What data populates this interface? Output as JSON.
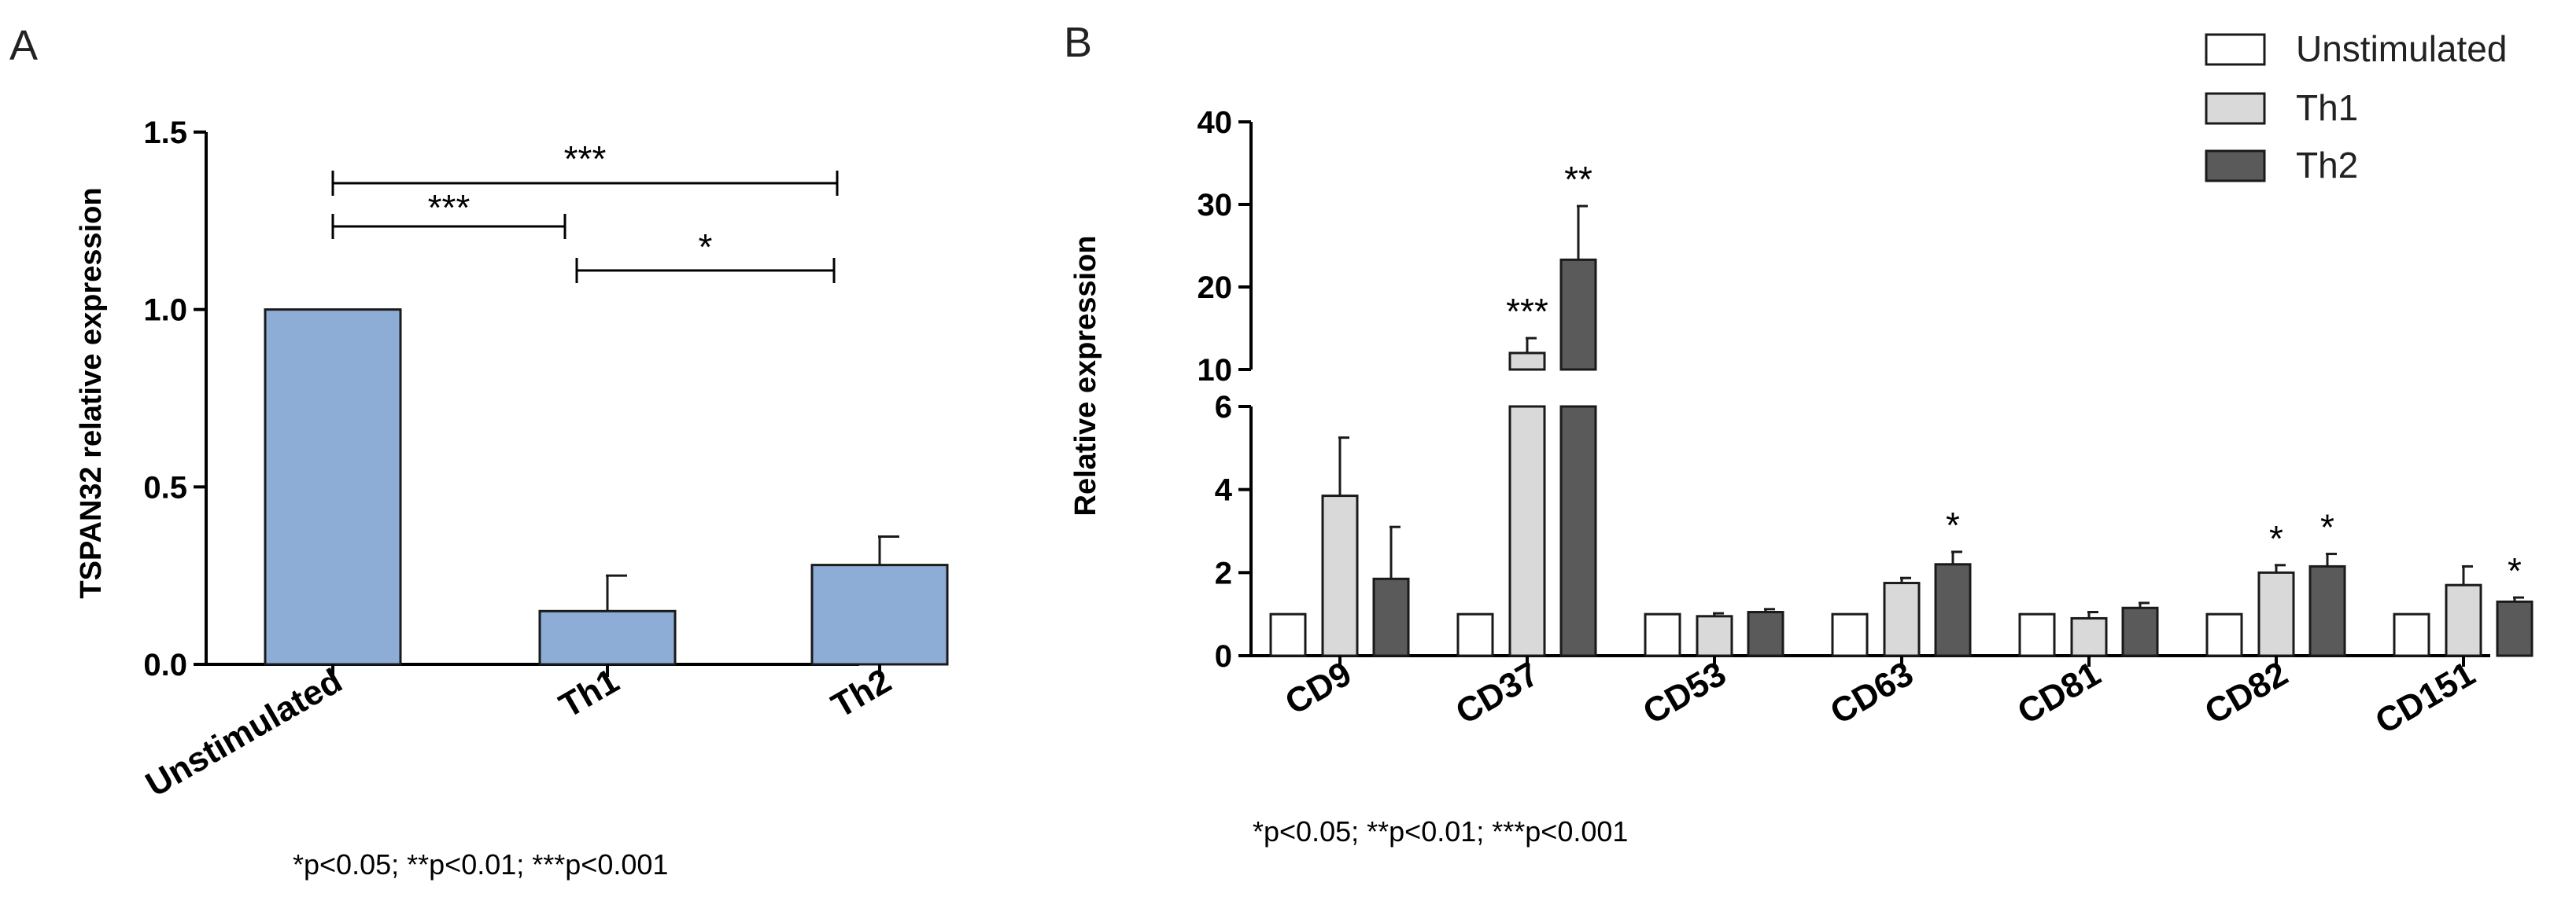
{
  "chart_data": [
    {
      "panel": "A",
      "type": "bar",
      "ylabel": "TSPAN32 relative expression",
      "categories": [
        "Unstimulated",
        "Th1",
        "Th2"
      ],
      "values": [
        1.0,
        0.15,
        0.28
      ],
      "errors": [
        0,
        0.1,
        0.08
      ],
      "ylim": [
        0,
        1.5
      ],
      "yticks": [
        "0.0",
        "0.5",
        "1.0",
        "1.5"
      ],
      "bar_color": "#8eadd6",
      "comparisons": [
        {
          "from": 0,
          "to": 2,
          "label": "***"
        },
        {
          "from": 0,
          "to": 1,
          "label": "***"
        },
        {
          "from": 1,
          "to": 2,
          "label": "*"
        }
      ],
      "footnote": "*p<0.05; **p<0.01; ***p<0.001"
    },
    {
      "panel": "B",
      "type": "bar",
      "ylabel": "Relative expression",
      "categories": [
        "CD9",
        "CD37",
        "CD53",
        "CD63",
        "CD81",
        "CD82",
        "CD151"
      ],
      "series": [
        {
          "name": "Unstimulated",
          "color": "#ffffff",
          "values": [
            1,
            1,
            1,
            1,
            1,
            1,
            1
          ],
          "errors": [
            0,
            0,
            0,
            0,
            0,
            0,
            0
          ],
          "sig": [
            "",
            "",
            "",
            "",
            "",
            "",
            ""
          ]
        },
        {
          "name": "Th1",
          "color": "#d9d9d9",
          "values": [
            3.85,
            12,
            0.95,
            1.75,
            0.9,
            2.0,
            1.7
          ],
          "errors": [
            1.4,
            1.8,
            0.07,
            0.12,
            0.15,
            0.18,
            0.45
          ],
          "sig": [
            "",
            "***",
            "",
            "",
            "",
            "*",
            ""
          ]
        },
        {
          "name": "Th2",
          "color": "#5a5a5a",
          "values": [
            1.85,
            23.3,
            1.05,
            2.2,
            1.15,
            2.15,
            1.3
          ],
          "errors": [
            1.25,
            6.5,
            0.07,
            0.3,
            0.12,
            0.3,
            0.1
          ],
          "sig": [
            "",
            "**",
            "",
            "*",
            "",
            "*",
            "*"
          ]
        }
      ],
      "ylim_lower": [
        0,
        6
      ],
      "ylim_upper": [
        10,
        40
      ],
      "yticks_lower": [
        "0",
        "2",
        "4",
        "6"
      ],
      "yticks_upper": [
        "10",
        "20",
        "30",
        "40"
      ],
      "legend": [
        "Unstimulated",
        "Th1",
        "Th2"
      ],
      "footnote": "*p<0.05; **p<0.01; ***p<0.001"
    }
  ]
}
